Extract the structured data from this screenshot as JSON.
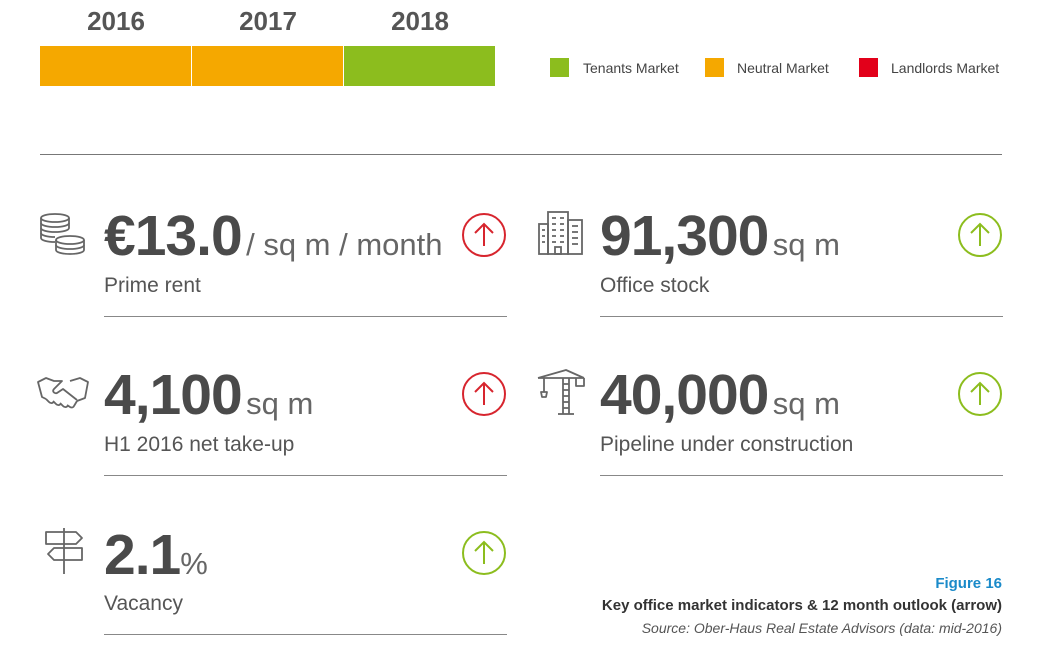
{
  "years": {
    "labels": [
      "2016",
      "2017",
      "2018"
    ],
    "states": [
      "Neutral Market",
      "Neutral Market",
      "Tenants Market"
    ]
  },
  "legend": {
    "tenants": {
      "label": "Tenants Market",
      "color": "#8cbd1e"
    },
    "neutral": {
      "label": "Neutral Market",
      "color": "#f5a800"
    },
    "landlords": {
      "label": "Landlords Market",
      "color": "#e2001a"
    }
  },
  "indicators": {
    "prime_rent": {
      "value": "€13.0",
      "unit": "/ sq m / month",
      "label": "Prime rent",
      "icon": "coins-stack-icon",
      "arrow": "up",
      "arrow_color": "#d7252e"
    },
    "office_stock": {
      "value": "91,300",
      "unit": "sq m",
      "label": "Office stock",
      "icon": "office-building-icon",
      "arrow": "up",
      "arrow_color": "#8cbd1e"
    },
    "take_up": {
      "value": "4,100",
      "unit": "sq m",
      "label": "H1 2016 net take-up",
      "icon": "handshake-icon",
      "arrow": "up",
      "arrow_color": "#d7252e"
    },
    "pipeline": {
      "value": "40,000",
      "unit": "sq m",
      "label": "Pipeline under construction",
      "icon": "construction-crane-icon",
      "arrow": "up",
      "arrow_color": "#8cbd1e"
    },
    "vacancy": {
      "value": "2.1",
      "unit": "%",
      "label": "Vacancy",
      "icon": "signpost-icon",
      "arrow": "up",
      "arrow_color": "#8cbd1e"
    }
  },
  "caption": {
    "figure": "Figure 16",
    "title": "Key office market indicators & 12 month outlook (arrow)",
    "source": "Source: Ober-Haus Real Estate Advisors (data: mid-2016)",
    "figure_color": "#1a8ac9"
  }
}
